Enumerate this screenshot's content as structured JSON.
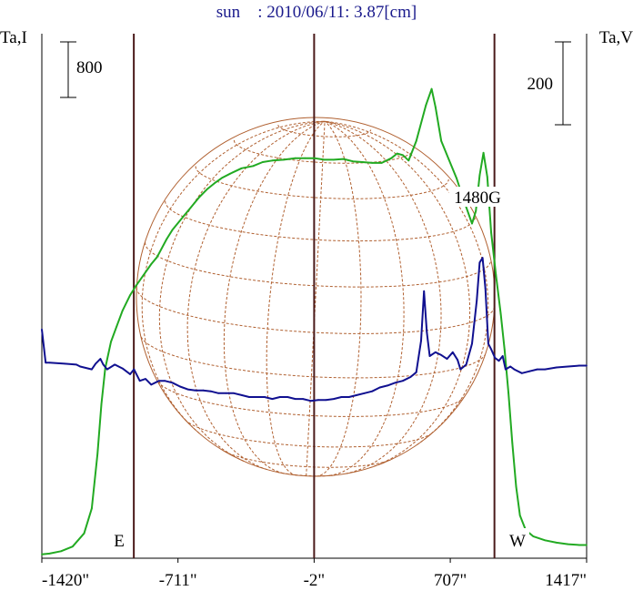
{
  "chart_data": {
    "type": "line",
    "title": {
      "object": "sun",
      "rest": "    : 2010/06/11: 3.87[cm]",
      "color": "#1a1a8c"
    },
    "left_axis_label": "Ta,I",
    "right_axis_label": "Ta,V",
    "left_scale_bar_label": "800",
    "right_scale_bar_label": "200",
    "xlabels": [
      "-1420\"",
      "-711\"",
      "-2\"",
      "707\"",
      "1417\""
    ],
    "xticks": [
      -1420,
      -711,
      -2,
      707,
      1417
    ],
    "xlim": [
      -1420,
      1417
    ],
    "limb_labels": {
      "east": "E",
      "west": "W"
    },
    "limb_lines_x": [
      -941,
      -2,
      937
    ],
    "annotation": {
      "text": "1480G",
      "x": 877
    },
    "colors": {
      "intensity": "#22aa22",
      "polarization": "#101090",
      "disk": "#b06030",
      "limb_line": "#4a1a1a"
    },
    "series": [
      {
        "key": "intensity",
        "points": [
          [
            -1420,
            -95
          ],
          [
            -1380,
            -90
          ],
          [
            -1320,
            -75
          ],
          [
            -1260,
            -45
          ],
          [
            -1200,
            40
          ],
          [
            -1160,
            200
          ],
          [
            -1130,
            550
          ],
          [
            -1110,
            870
          ],
          [
            -1090,
            1100
          ],
          [
            -1060,
            1270
          ],
          [
            -1030,
            1370
          ],
          [
            -1000,
            1470
          ],
          [
            -960,
            1570
          ],
          [
            -930,
            1630
          ],
          [
            -890,
            1700
          ],
          [
            -850,
            1770
          ],
          [
            -820,
            1815
          ],
          [
            -770,
            1930
          ],
          [
            -740,
            1990
          ],
          [
            -680,
            2080
          ],
          [
            -640,
            2140
          ],
          [
            -600,
            2200
          ],
          [
            -560,
            2250
          ],
          [
            -520,
            2290
          ],
          [
            -480,
            2325
          ],
          [
            -440,
            2350
          ],
          [
            -380,
            2385
          ],
          [
            -320,
            2400
          ],
          [
            -270,
            2425
          ],
          [
            -220,
            2435
          ],
          [
            -160,
            2440
          ],
          [
            -100,
            2450
          ],
          [
            -50,
            2450
          ],
          [
            0,
            2450
          ],
          [
            50,
            2440
          ],
          [
            100,
            2440
          ],
          [
            150,
            2445
          ],
          [
            200,
            2430
          ],
          [
            250,
            2425
          ],
          [
            300,
            2420
          ],
          [
            350,
            2420
          ],
          [
            400,
            2450
          ],
          [
            430,
            2480
          ],
          [
            460,
            2470
          ],
          [
            490,
            2435
          ],
          [
            530,
            2560
          ],
          [
            580,
            2790
          ],
          [
            610,
            2895
          ],
          [
            630,
            2780
          ],
          [
            660,
            2560
          ],
          [
            700,
            2440
          ],
          [
            740,
            2320
          ],
          [
            780,
            2170
          ],
          [
            820,
            2030
          ],
          [
            840,
            2110
          ],
          [
            860,
            2340
          ],
          [
            880,
            2485
          ],
          [
            900,
            2330
          ],
          [
            920,
            1970
          ],
          [
            945,
            1700
          ],
          [
            970,
            1450
          ],
          [
            990,
            1220
          ],
          [
            1010,
            940
          ],
          [
            1030,
            620
          ],
          [
            1050,
            340
          ],
          [
            1070,
            155
          ],
          [
            1100,
            60
          ],
          [
            1140,
            20
          ],
          [
            1200,
            -5
          ],
          [
            1260,
            -20
          ],
          [
            1320,
            -30
          ],
          [
            1380,
            -35
          ],
          [
            1417,
            -35
          ]
        ]
      },
      {
        "key": "polarization",
        "points": [
          [
            -1420,
            30
          ],
          [
            -1400,
            -5
          ],
          [
            -1380,
            -5
          ],
          [
            -1300,
            -6
          ],
          [
            -1240,
            -7
          ],
          [
            -1220,
            -9
          ],
          [
            -1160,
            -12
          ],
          [
            -1140,
            -6
          ],
          [
            -1115,
            -1
          ],
          [
            -1100,
            -7
          ],
          [
            -1080,
            -12
          ],
          [
            -1040,
            -7
          ],
          [
            -1000,
            -11
          ],
          [
            -960,
            -17
          ],
          [
            -940,
            -12
          ],
          [
            -910,
            -24
          ],
          [
            -880,
            -22
          ],
          [
            -850,
            -28
          ],
          [
            -810,
            -24
          ],
          [
            -780,
            -24
          ],
          [
            -740,
            -26
          ],
          [
            -700,
            -30
          ],
          [
            -660,
            -33
          ],
          [
            -620,
            -34
          ],
          [
            -580,
            -34
          ],
          [
            -540,
            -35
          ],
          [
            -500,
            -37
          ],
          [
            -460,
            -37
          ],
          [
            -420,
            -37
          ],
          [
            -380,
            -39
          ],
          [
            -340,
            -41
          ],
          [
            -300,
            -41
          ],
          [
            -260,
            -41
          ],
          [
            -220,
            -43
          ],
          [
            -180,
            -41
          ],
          [
            -140,
            -41
          ],
          [
            -100,
            -43
          ],
          [
            -60,
            -43
          ],
          [
            -20,
            -45
          ],
          [
            20,
            -44
          ],
          [
            60,
            -44
          ],
          [
            100,
            -43
          ],
          [
            140,
            -41
          ],
          [
            180,
            -41
          ],
          [
            220,
            -39
          ],
          [
            260,
            -37
          ],
          [
            300,
            -35
          ],
          [
            340,
            -31
          ],
          [
            380,
            -29
          ],
          [
            420,
            -26
          ],
          [
            460,
            -24
          ],
          [
            500,
            -20
          ],
          [
            530,
            -15
          ],
          [
            555,
            18
          ],
          [
            570,
            70
          ],
          [
            585,
            27
          ],
          [
            600,
            2
          ],
          [
            630,
            6
          ],
          [
            660,
            3
          ],
          [
            690,
            -1
          ],
          [
            720,
            6
          ],
          [
            745,
            -2
          ],
          [
            760,
            -12
          ],
          [
            790,
            -7
          ],
          [
            820,
            15
          ],
          [
            845,
            60
          ],
          [
            860,
            100
          ],
          [
            875,
            105
          ],
          [
            890,
            73
          ],
          [
            905,
            15
          ],
          [
            920,
            9
          ],
          [
            940,
            0
          ],
          [
            960,
            -3
          ],
          [
            980,
            2
          ],
          [
            995,
            -12
          ],
          [
            1020,
            -9
          ],
          [
            1040,
            -12
          ],
          [
            1080,
            -16
          ],
          [
            1120,
            -14
          ],
          [
            1160,
            -12
          ],
          [
            1200,
            -12
          ],
          [
            1260,
            -10
          ],
          [
            1320,
            -9
          ],
          [
            1380,
            -8
          ],
          [
            1417,
            -8
          ]
        ]
      }
    ],
    "left_ylim": [
      -120,
      3250
    ],
    "right_ylim": [
      -210,
      340
    ],
    "grid": false,
    "legend": "none"
  }
}
